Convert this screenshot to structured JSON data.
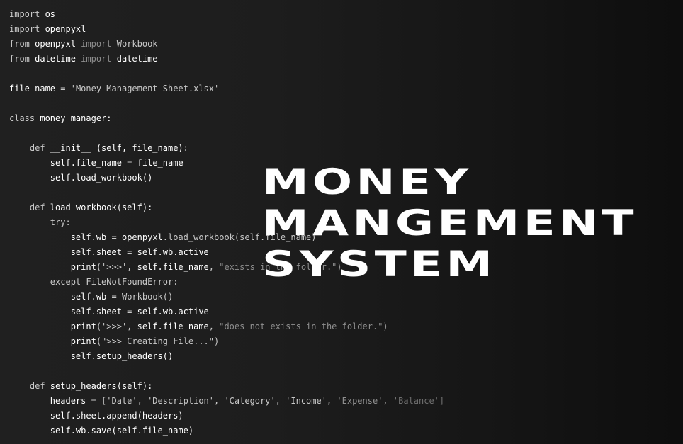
{
  "code": {
    "line_01": [
      [
        "k",
        "import "
      ],
      [
        "b",
        "os"
      ]
    ],
    "line_02": [
      [
        "k",
        "import "
      ],
      [
        "b",
        "openpyxl"
      ]
    ],
    "line_03": [
      [
        "k",
        "from "
      ],
      [
        "b",
        "openpyxl"
      ],
      [
        "d",
        " import "
      ],
      [
        "k",
        "Workbook"
      ]
    ],
    "line_04": [
      [
        "k",
        "from "
      ],
      [
        "b",
        "datetime"
      ],
      [
        "d",
        " import "
      ],
      [
        "b",
        "datetime"
      ]
    ],
    "line_05": [],
    "line_06": [
      [
        "b",
        "file_name"
      ],
      [
        "k",
        " = "
      ],
      [
        "k",
        "'Money Management Sheet.xlsx'"
      ]
    ],
    "line_07": [],
    "line_08": [
      [
        "k",
        "class "
      ],
      [
        "b",
        "money_manager:"
      ]
    ],
    "line_09": [],
    "line_10": [
      [
        "k",
        "    def "
      ],
      [
        "b",
        "__init__ (self, file_name):"
      ]
    ],
    "line_11": [
      [
        "b",
        "        self.file_name"
      ],
      [
        "k",
        " = "
      ],
      [
        "b",
        "file_name"
      ]
    ],
    "line_12": [
      [
        "b",
        "        self.load_workbook()"
      ]
    ],
    "line_13": [],
    "line_14": [
      [
        "k",
        "    def "
      ],
      [
        "b",
        "load_workbook(self):"
      ]
    ],
    "line_15": [
      [
        "k",
        "        try:"
      ]
    ],
    "line_16": [
      [
        "b",
        "            self.wb"
      ],
      [
        "k",
        " = "
      ],
      [
        "b",
        "openpyxl"
      ],
      [
        "k",
        ".load_workbook(self.file_name)"
      ]
    ],
    "line_17": [
      [
        "b",
        "            self.sheet"
      ],
      [
        "k",
        " = "
      ],
      [
        "b",
        "self.wb.active"
      ]
    ],
    "line_18": [
      [
        "b",
        "            print"
      ],
      [
        "k",
        "('>>>', "
      ],
      [
        "b",
        "self.file_name"
      ],
      [
        "k",
        ", "
      ],
      [
        "d",
        "\"exists in the folder.\")"
      ]
    ],
    "line_19": [
      [
        "k",
        "        except FileNotFoundError:"
      ]
    ],
    "line_20": [
      [
        "b",
        "            self.wb"
      ],
      [
        "k",
        " = "
      ],
      [
        "k",
        "Workbook()"
      ]
    ],
    "line_21": [
      [
        "b",
        "            self.sheet"
      ],
      [
        "k",
        " = "
      ],
      [
        "b",
        "self.wb.active"
      ]
    ],
    "line_22": [
      [
        "b",
        "            print"
      ],
      [
        "k",
        "('>>>', "
      ],
      [
        "b",
        "self.file_name"
      ],
      [
        "k",
        ", "
      ],
      [
        "d",
        "\"does not exists in the folder.\")"
      ]
    ],
    "line_23": [
      [
        "b",
        "            print"
      ],
      [
        "k",
        "(\">>> Creating File...\")"
      ]
    ],
    "line_24": [
      [
        "b",
        "            self.setup_headers()"
      ]
    ],
    "line_25": [],
    "line_26": [
      [
        "k",
        "    def "
      ],
      [
        "b",
        "setup_headers(self):"
      ]
    ],
    "line_27": [
      [
        "b",
        "        headers"
      ],
      [
        "k",
        " = ['Date', 'Description', 'Category', 'Income', "
      ],
      [
        "d",
        "'Expense', "
      ],
      [
        "dd",
        "'Balance']"
      ]
    ],
    "line_28": [
      [
        "b",
        "        self.sheet.append(headers)"
      ]
    ],
    "line_29": [
      [
        "b",
        "        self.wb.save(self.file_name)"
      ]
    ]
  },
  "title": {
    "line1": "MONEY",
    "line2": "MANGEMENT",
    "line3": "SYSTEM"
  }
}
